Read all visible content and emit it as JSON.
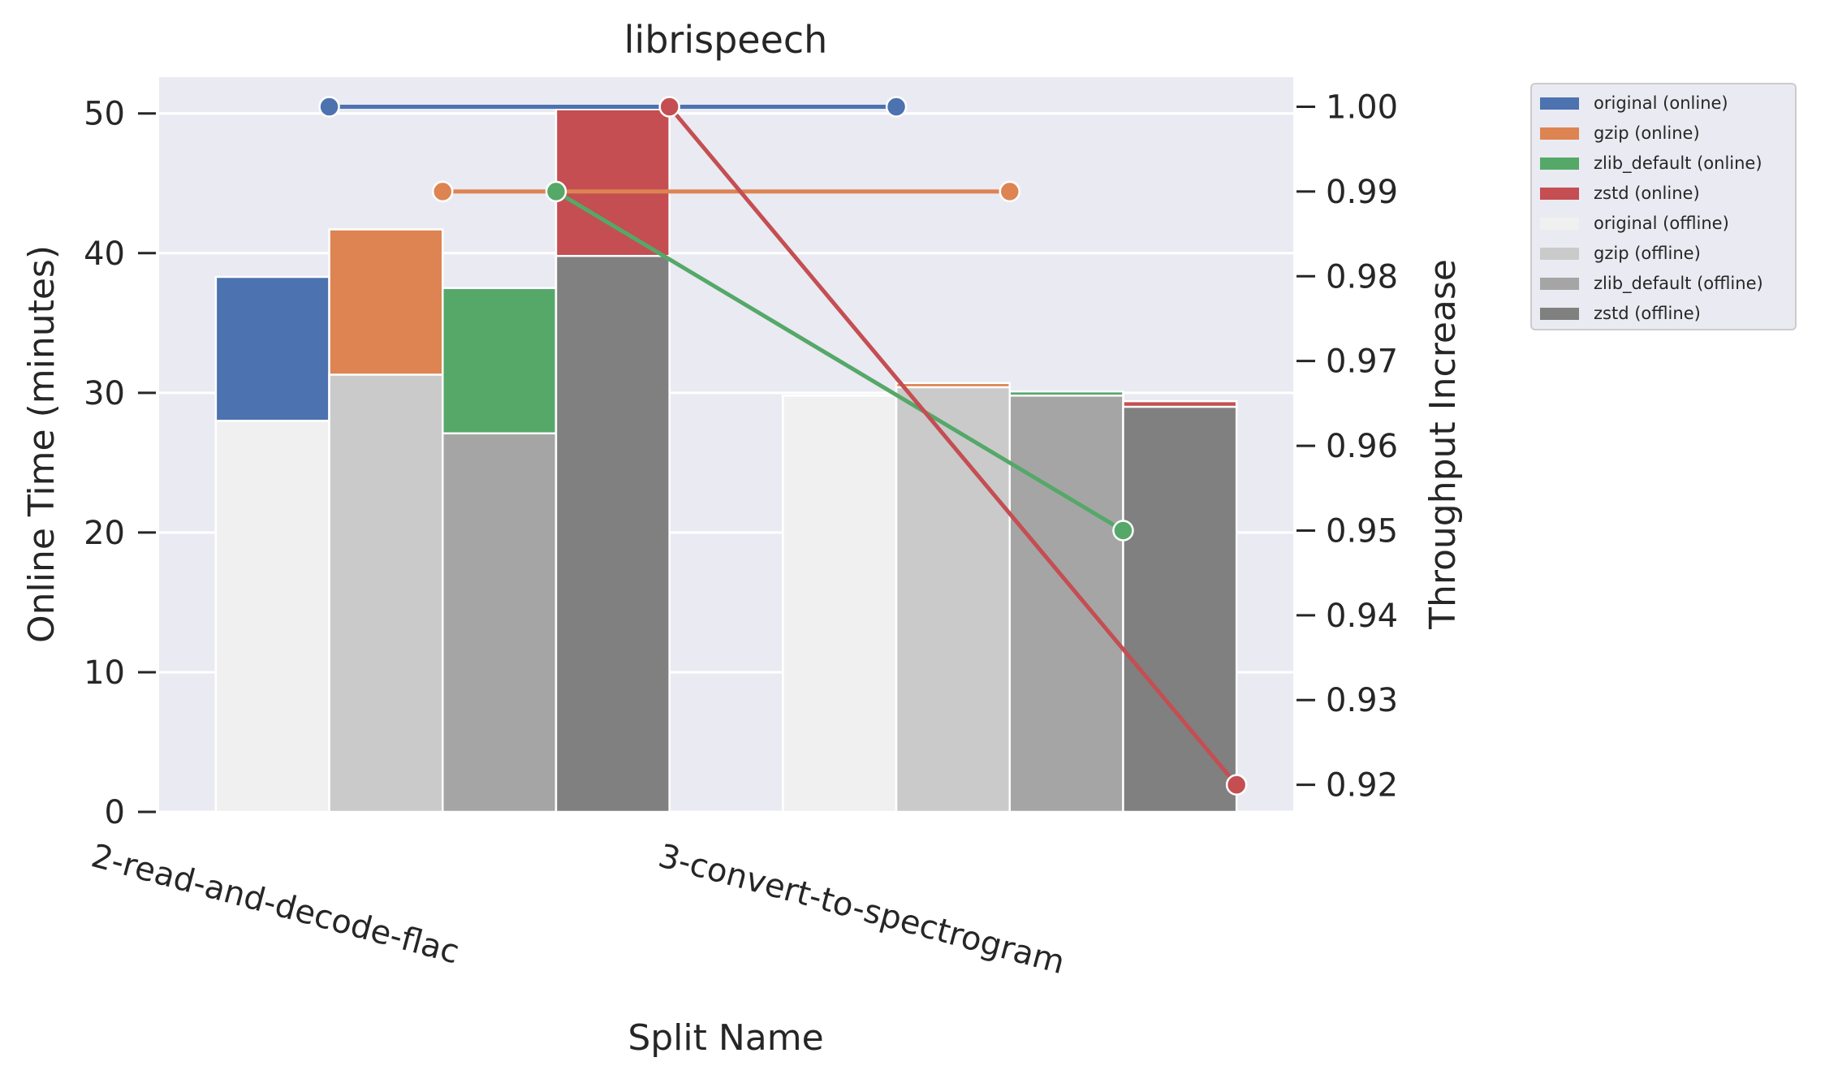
{
  "chart_data": {
    "type": "bar",
    "title": "librispeech",
    "xlabel": "Split Name",
    "ylabel": "Online Time (minutes)",
    "y2label": "Throughput Increase",
    "categories": [
      "2-read-and-decode-flac",
      "3-convert-to-spectrogram"
    ],
    "ylim": [
      0,
      52.6
    ],
    "y2lim": [
      0.9168,
      1.0035
    ],
    "yticks": [
      "0",
      "10",
      "20",
      "30",
      "40",
      "50"
    ],
    "y2ticks": [
      "0.92",
      "0.93",
      "0.94",
      "0.95",
      "0.96",
      "0.97",
      "0.98",
      "0.99",
      "1.00"
    ],
    "grid": true,
    "legend_position": "outside-right",
    "bar_series": [
      {
        "name": "original (online)",
        "color": "#4c72b0",
        "group": "original",
        "layer": "online",
        "values": [
          38.3,
          29.8
        ]
      },
      {
        "name": "gzip (online)",
        "color": "#dd8452",
        "group": "gzip",
        "layer": "online",
        "values": [
          41.7,
          30.7
        ]
      },
      {
        "name": "zlib_default (online)",
        "color": "#55a868",
        "group": "zlib_default",
        "layer": "online",
        "values": [
          37.5,
          30.1
        ]
      },
      {
        "name": "zstd (online)",
        "color": "#c44e52",
        "group": "zstd",
        "layer": "online",
        "values": [
          50.3,
          29.4
        ]
      },
      {
        "name": "original (offline)",
        "color": "#f0f0f0",
        "group": "original",
        "layer": "offline",
        "values": [
          28.0,
          29.8
        ]
      },
      {
        "name": "gzip (offline)",
        "color": "#cacaca",
        "group": "gzip",
        "layer": "offline",
        "values": [
          31.3,
          30.4
        ]
      },
      {
        "name": "zlib_default (offline)",
        "color": "#a5a5a5",
        "group": "zlib_default",
        "layer": "offline",
        "values": [
          27.1,
          29.8
        ]
      },
      {
        "name": "zstd (offline)",
        "color": "#808080",
        "group": "zstd",
        "layer": "offline",
        "values": [
          39.8,
          29.0
        ]
      }
    ],
    "line_series": [
      {
        "group": "original",
        "color": "#4c72b0",
        "values": [
          1.0,
          1.0
        ]
      },
      {
        "group": "gzip",
        "color": "#dd8452",
        "values": [
          0.99,
          0.99
        ]
      },
      {
        "group": "zlib_default",
        "color": "#55a868",
        "values": [
          0.99,
          0.95
        ]
      },
      {
        "group": "zstd",
        "color": "#c44e52",
        "values": [
          1.0,
          0.92
        ]
      }
    ]
  }
}
